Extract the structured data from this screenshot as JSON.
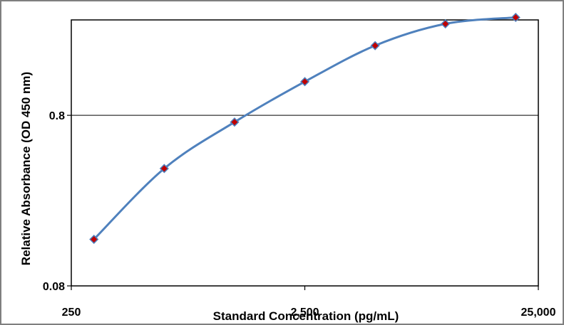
{
  "chart_data": {
    "type": "line",
    "title": "",
    "xlabel": "Standard Concentration (pg/mL)",
    "ylabel": "Relative Absorbance (OD 450 nm)",
    "x_scale": "log",
    "y_scale": "log",
    "xlim": [
      250,
      25000
    ],
    "ylim": [
      0.08,
      2.9
    ],
    "x_ticks": [
      250,
      2500,
      25000
    ],
    "x_tick_labels": [
      "250",
      "2,500",
      "25,000"
    ],
    "y_ticks": [
      0.08,
      0.8
    ],
    "y_tick_labels": [
      "0.08",
      "0.8"
    ],
    "grid": {
      "horizontal": true,
      "vertical": false
    },
    "legend": "none",
    "series": [
      {
        "x": [
          312.5,
          625,
          1250,
          2500,
          5000,
          10000,
          20000
        ],
        "y": [
          0.15,
          0.39,
          0.73,
          1.26,
          2.05,
          2.75,
          3.0
        ]
      }
    ],
    "colors": {
      "line": "#4f81bd",
      "marker_fill": "#c00000",
      "marker_stroke": "#4f81bd",
      "gridline": "#000000",
      "plot_border": "#000000",
      "frame_border": "#7f7f7f"
    }
  }
}
